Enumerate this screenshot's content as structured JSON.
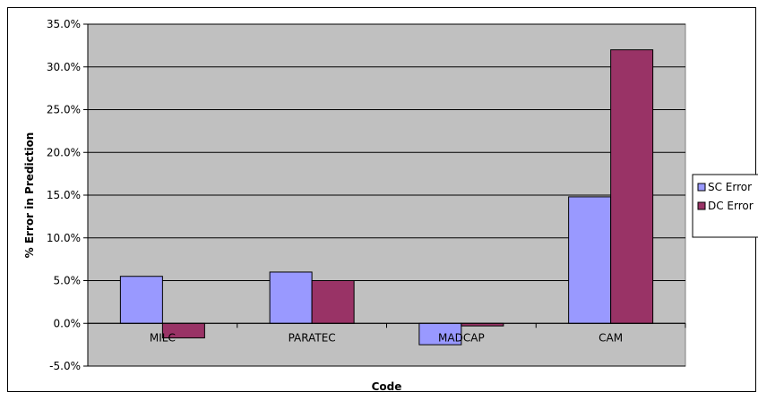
{
  "chart_data": {
    "type": "bar",
    "title": "",
    "xlabel": "Code",
    "ylabel": "% Error in Prediction",
    "categories": [
      "MILC",
      "PARATEC",
      "MADCAP",
      "CAM"
    ],
    "series": [
      {
        "name": "SC Error",
        "values": [
          5.5,
          6.0,
          -2.5,
          14.8
        ],
        "color": "#9999ff"
      },
      {
        "name": "DC Error",
        "values": [
          -1.7,
          5.0,
          -0.3,
          32.0
        ],
        "color": "#993366"
      }
    ],
    "ylim": [
      -5,
      35
    ],
    "y_ticks": [
      "-5.0%",
      "0.0%",
      "5.0%",
      "10.0%",
      "15.0%",
      "20.0%",
      "25.0%",
      "30.0%",
      "35.0%"
    ],
    "grid": true,
    "plot_background": "#c0c0c0",
    "legend_position": "right"
  }
}
